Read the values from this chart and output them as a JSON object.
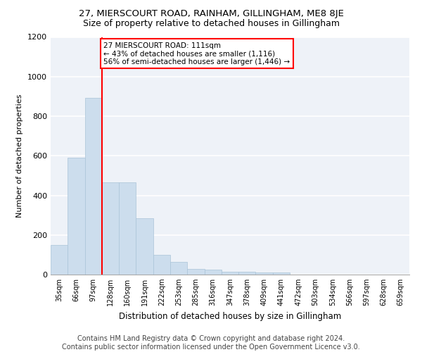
{
  "title": "27, MIERSCOURT ROAD, RAINHAM, GILLINGHAM, ME8 8JE",
  "subtitle": "Size of property relative to detached houses in Gillingham",
  "xlabel": "Distribution of detached houses by size in Gillingham",
  "ylabel": "Number of detached properties",
  "bar_color": "#ccdded",
  "bar_edgecolor": "#aac4d8",
  "background_color": "#eef2f8",
  "grid_color": "#ffffff",
  "annotation_line1": "27 MIERSCOURT ROAD: 111sqm",
  "annotation_line2": "← 43% of detached houses are smaller (1,116)",
  "annotation_line3": "56% of semi-detached houses are larger (1,446) →",
  "annotation_box_color": "red",
  "vline_x_idx": 3,
  "vline_color": "red",
  "categories": [
    "35sqm",
    "66sqm",
    "97sqm",
    "128sqm",
    "160sqm",
    "191sqm",
    "222sqm",
    "253sqm",
    "285sqm",
    "316sqm",
    "347sqm",
    "378sqm",
    "409sqm",
    "441sqm",
    "472sqm",
    "503sqm",
    "534sqm",
    "566sqm",
    "597sqm",
    "628sqm",
    "659sqm"
  ],
  "values": [
    148,
    592,
    893,
    467,
    467,
    283,
    101,
    63,
    30,
    25,
    15,
    13,
    10,
    9,
    0,
    0,
    0,
    0,
    0,
    0,
    0
  ],
  "ylim": [
    0,
    1200
  ],
  "yticks": [
    0,
    200,
    400,
    600,
    800,
    1000,
    1200
  ],
  "footer": "Contains HM Land Registry data © Crown copyright and database right 2024.\nContains public sector information licensed under the Open Government Licence v3.0.",
  "title_fontsize": 9.5,
  "subtitle_fontsize": 9,
  "ylabel_fontsize": 8,
  "xlabel_fontsize": 8.5,
  "footer_fontsize": 7,
  "tick_fontsize": 7,
  "ytick_fontsize": 8
}
